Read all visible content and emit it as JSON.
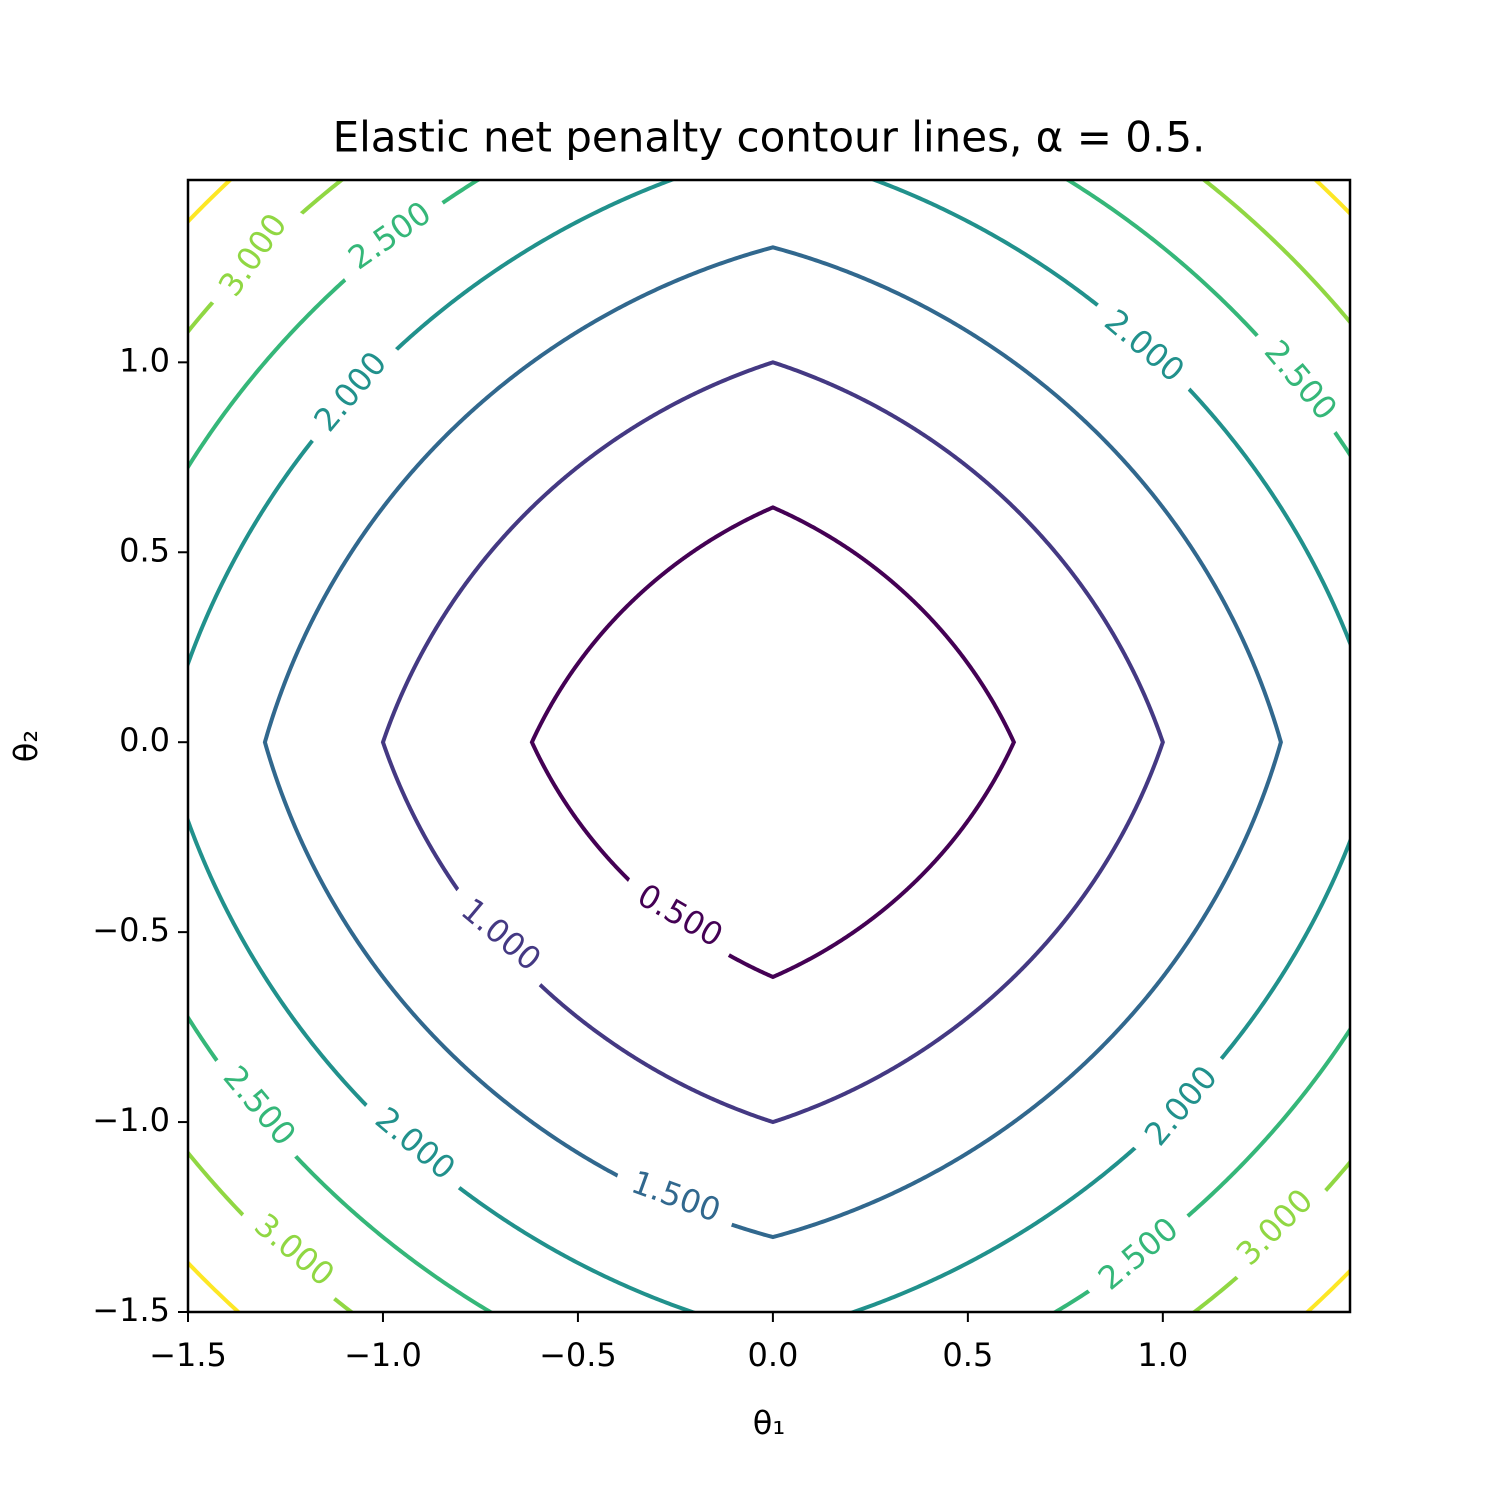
{
  "chart_data": {
    "type": "contour",
    "title": "Elastic net penalty contour lines, α = 0.5.",
    "alpha": 0.5,
    "x_label": "θ₁",
    "y_label": "θ₂",
    "levels": [
      0.5,
      1.0,
      1.5,
      2.0,
      2.5,
      3.0,
      3.5
    ],
    "level_labels": [
      "0.500",
      "1.000",
      "1.500",
      "2.000",
      "2.500",
      "3.000",
      null
    ],
    "colors": [
      "#440154",
      "#443983",
      "#31688e",
      "#21918c",
      "#35b779",
      "#90d743",
      "#fde725"
    ],
    "xlim": [
      -1.5,
      1.48
    ],
    "ylim": [
      -1.5,
      1.48
    ],
    "xticks": [
      {
        "value": -1.5,
        "label": "−1.5"
      },
      {
        "value": -1.0,
        "label": "−1.0"
      },
      {
        "value": -0.5,
        "label": "−0.5"
      },
      {
        "value": 0,
        "label": "0.0"
      },
      0.5,
      {
        "value": 1.0,
        "label": "1.0"
      }
    ],
    "yticks": [
      {
        "value": -1.5,
        "label": "−1.5"
      },
      {
        "value": -1.0,
        "label": "−1.0"
      },
      {
        "value": -0.5,
        "label": "−0.5"
      },
      {
        "value": 0,
        "label": "0.0"
      },
      0.5,
      {
        "value": 1.0,
        "label": "1.0"
      }
    ]
  }
}
